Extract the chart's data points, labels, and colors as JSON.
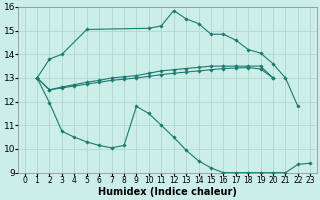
{
  "xlabel": "Humidex (Indice chaleur)",
  "background_color": "#cceee8",
  "grid_color": "#b0d8d0",
  "line_color": "#1a7a6e",
  "xlim": [
    -0.5,
    23.5
  ],
  "ylim": [
    9,
    16
  ],
  "xtick_labels": [
    "0",
    "1",
    "2",
    "3",
    "4",
    "5",
    "6",
    "7",
    "8",
    "9",
    "10",
    "11",
    "12",
    "13",
    "14",
    "15",
    "16",
    "17",
    "18",
    "19",
    "20",
    "21",
    "22",
    "23"
  ],
  "xtick_vals": [
    0,
    1,
    2,
    3,
    4,
    5,
    6,
    7,
    8,
    9,
    10,
    11,
    12,
    13,
    14,
    15,
    16,
    17,
    18,
    19,
    20,
    21,
    22,
    23
  ],
  "yticks": [
    9,
    10,
    11,
    12,
    13,
    14,
    15,
    16
  ],
  "series": [
    {
      "x": [
        1,
        2,
        3,
        5,
        10,
        11,
        12,
        13,
        14,
        15,
        16,
        17,
        18,
        19,
        20,
        21,
        22
      ],
      "y": [
        13.0,
        13.8,
        14.0,
        15.05,
        15.1,
        15.2,
        15.85,
        15.5,
        15.3,
        14.85,
        14.85,
        14.6,
        14.2,
        14.05,
        13.6,
        13.0,
        11.8
      ]
    },
    {
      "x": [
        1,
        2,
        3,
        4,
        5,
        6,
        7,
        8,
        9,
        10,
        11,
        12,
        13,
        14,
        15,
        16,
        17,
        18,
        19,
        20
      ],
      "y": [
        13.0,
        12.5,
        12.62,
        12.72,
        12.82,
        12.9,
        13.0,
        13.05,
        13.1,
        13.2,
        13.3,
        13.35,
        13.4,
        13.45,
        13.5,
        13.5,
        13.5,
        13.5,
        13.5,
        13.0
      ]
    },
    {
      "x": [
        1,
        2,
        3,
        4,
        5,
        6,
        7,
        8,
        9,
        10,
        11,
        12,
        13,
        14,
        15,
        16,
        17,
        18,
        19,
        20
      ],
      "y": [
        13.0,
        12.5,
        12.58,
        12.66,
        12.74,
        12.82,
        12.9,
        12.95,
        13.0,
        13.07,
        13.14,
        13.2,
        13.25,
        13.3,
        13.35,
        13.4,
        13.42,
        13.44,
        13.38,
        13.0
      ]
    },
    {
      "x": [
        1,
        2,
        3,
        4,
        5,
        6,
        7,
        8,
        9,
        10,
        11,
        12,
        13,
        14,
        15,
        16,
        17,
        18,
        19,
        20,
        21,
        22,
        23
      ],
      "y": [
        13.0,
        11.95,
        10.75,
        10.5,
        10.3,
        10.15,
        10.05,
        10.15,
        11.8,
        11.5,
        11.0,
        10.5,
        9.95,
        9.5,
        9.2,
        9.0,
        9.0,
        9.0,
        9.0,
        9.0,
        9.0,
        9.35,
        9.4
      ]
    }
  ],
  "font_size_xlabel": 7,
  "font_size_ytick": 6.5,
  "font_size_xtick": 5.5,
  "linewidth": 0.8,
  "markersize": 1.8
}
